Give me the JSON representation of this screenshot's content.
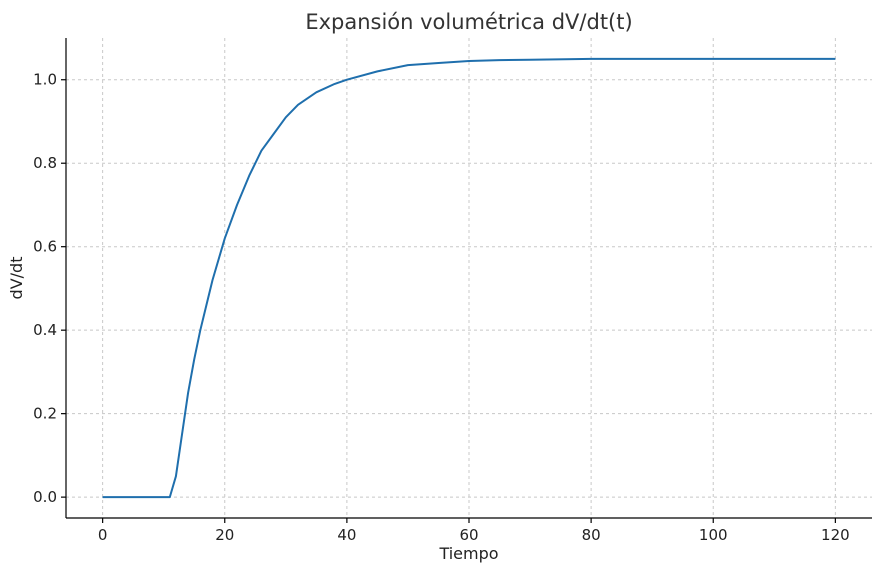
{
  "chart_data": {
    "type": "line",
    "title": "Expansión volumétrica dV/dt(t)",
    "xlabel": "Tiempo",
    "ylabel": "dV/dt",
    "xlim": [
      -6,
      126
    ],
    "ylim": [
      -0.05,
      1.1
    ],
    "xticks": [
      0,
      20,
      40,
      60,
      80,
      100,
      120
    ],
    "yticks": [
      0.0,
      0.2,
      0.4,
      0.6,
      0.8,
      1.0
    ],
    "xtick_labels": [
      "0",
      "20",
      "40",
      "60",
      "80",
      "100",
      "120"
    ],
    "ytick_labels": [
      "0.0",
      "0.2",
      "0.4",
      "0.6",
      "0.8",
      "1.0"
    ],
    "grid": true,
    "series": [
      {
        "color": "#1f6fad",
        "x": [
          0,
          5,
          10,
          11,
          12,
          13,
          14,
          15,
          16,
          17,
          18,
          20,
          22,
          24,
          26,
          28,
          30,
          32,
          35,
          38,
          40,
          45,
          50,
          55,
          60,
          65,
          70,
          80,
          90,
          100,
          110,
          120
        ],
        "y": [
          0.0,
          0.0,
          0.0,
          0.0,
          0.05,
          0.15,
          0.25,
          0.33,
          0.4,
          0.46,
          0.52,
          0.62,
          0.7,
          0.77,
          0.83,
          0.87,
          0.91,
          0.94,
          0.97,
          0.99,
          1.0,
          1.02,
          1.035,
          1.04,
          1.045,
          1.047,
          1.048,
          1.05,
          1.05,
          1.05,
          1.05,
          1.05
        ]
      }
    ]
  }
}
